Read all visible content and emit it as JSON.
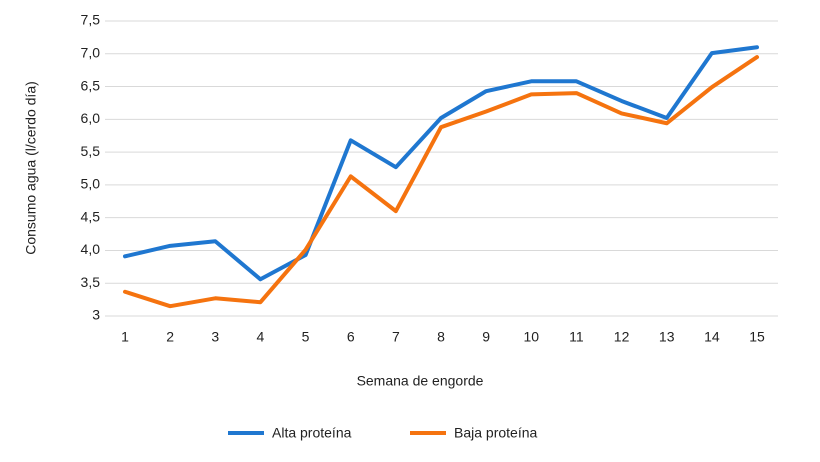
{
  "chart_data": {
    "type": "line",
    "x_label": "Semana de engorde",
    "y_label": "Consumo agua (l/cerdo día)",
    "categories": [
      "1",
      "2",
      "3",
      "4",
      "5",
      "6",
      "7",
      "8",
      "9",
      "10",
      "11",
      "12",
      "13",
      "14",
      "15"
    ],
    "series": [
      {
        "name": "Alta proteína",
        "color": "#1f77d0",
        "values": [
          3.91,
          4.07,
          4.14,
          3.56,
          3.93,
          5.68,
          5.27,
          6.02,
          6.43,
          6.58,
          6.58,
          6.28,
          6.02,
          7.01,
          7.1
        ]
      },
      {
        "name": "Baja proteína",
        "color": "#f5730f",
        "values": [
          3.37,
          3.15,
          3.27,
          3.21,
          4.01,
          5.13,
          4.6,
          5.88,
          6.12,
          6.38,
          6.4,
          6.09,
          5.94,
          6.49,
          6.95
        ]
      }
    ],
    "ylim": [
      3,
      7.5
    ],
    "yticks": [
      3,
      {
        "value": 3.5,
        "label": "3,5"
      },
      {
        "value": 4,
        "label": "4,0"
      },
      {
        "value": 4.5,
        "label": "4,5"
      },
      {
        "value": 5,
        "label": "5,0"
      },
      {
        "value": 5.5,
        "label": "5,5"
      },
      {
        "value": 6,
        "label": "6,0"
      },
      {
        "value": 6.5,
        "label": "6,5"
      },
      {
        "value": 7,
        "label": "7,0"
      },
      {
        "value": 7.5,
        "label": "7,5"
      }
    ],
    "grid": true,
    "legend": "bottom"
  }
}
